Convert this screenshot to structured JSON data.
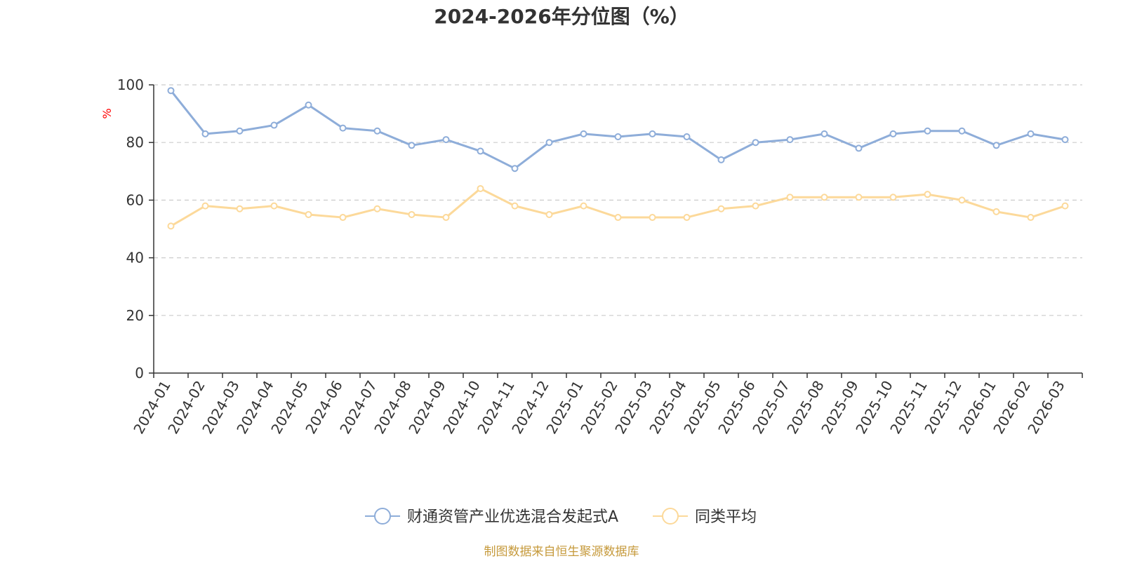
{
  "chart_data": {
    "type": "line",
    "title": "2024-2026年分位图（%）",
    "ylabel": "%",
    "xlabel": "",
    "ylim": [
      0,
      100
    ],
    "yticks": [
      0,
      20,
      40,
      60,
      80,
      100
    ],
    "grid": true,
    "legend_position": "bottom",
    "categories": [
      "2024-01",
      "2024-02",
      "2024-03",
      "2024-04",
      "2024-05",
      "2024-06",
      "2024-07",
      "2024-08",
      "2024-09",
      "2024-10",
      "2024-11",
      "2024-12",
      "2025-01",
      "2025-02",
      "2025-03",
      "2025-04",
      "2025-05",
      "2025-06",
      "2025-07",
      "2025-08",
      "2025-09",
      "2025-10",
      "2025-11",
      "2025-12",
      "2026-01",
      "2026-02",
      "2026-03"
    ],
    "series": [
      {
        "name": "财通资管产业优选混合发起式A",
        "color": "#8eadd9",
        "values": [
          98,
          83,
          84,
          86,
          93,
          85,
          84,
          79,
          81,
          77,
          71,
          80,
          83,
          82,
          83,
          82,
          74,
          80,
          81,
          83,
          78,
          83,
          84,
          84,
          79,
          83,
          81
        ]
      },
      {
        "name": "同类平均",
        "color": "#fcd99a",
        "values": [
          51,
          58,
          57,
          58,
          55,
          54,
          57,
          55,
          54,
          64,
          58,
          55,
          58,
          54,
          54,
          54,
          57,
          58,
          61,
          61,
          61,
          61,
          62,
          60,
          56,
          54,
          58
        ]
      }
    ],
    "source": "制图数据来自恒生聚源数据库"
  },
  "colors": {
    "axis": "#333333",
    "grid": "#cccccc",
    "unit": "#ff0000",
    "source": "#c69a3c"
  }
}
